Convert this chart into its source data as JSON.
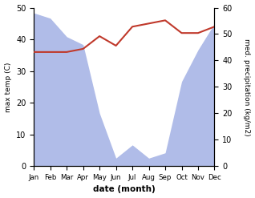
{
  "months": [
    "Jan",
    "Feb",
    "Mar",
    "Apr",
    "May",
    "Jun",
    "Jul",
    "Aug",
    "Sep",
    "Oct",
    "Nov",
    "Dec"
  ],
  "precipitation": [
    58,
    56,
    49,
    46,
    20,
    3,
    8,
    3,
    5,
    32,
    44,
    54
  ],
  "max_temp": [
    36,
    36,
    36,
    37,
    41,
    38,
    44,
    45,
    46,
    42,
    42,
    44
  ],
  "temp_ylim": [
    0,
    50
  ],
  "precip_ylim": [
    0,
    60
  ],
  "temp_color": "#c0392b",
  "precip_fill_color": "#b0bce8",
  "xlabel": "date (month)",
  "ylabel_left": "max temp (C)",
  "ylabel_right": "med. precipitation (kg/m2)",
  "temp_yticks": [
    0,
    10,
    20,
    30,
    40,
    50
  ],
  "precip_yticks": [
    0,
    10,
    20,
    30,
    40,
    50,
    60
  ],
  "figsize": [
    3.18,
    2.47
  ],
  "dpi": 100
}
